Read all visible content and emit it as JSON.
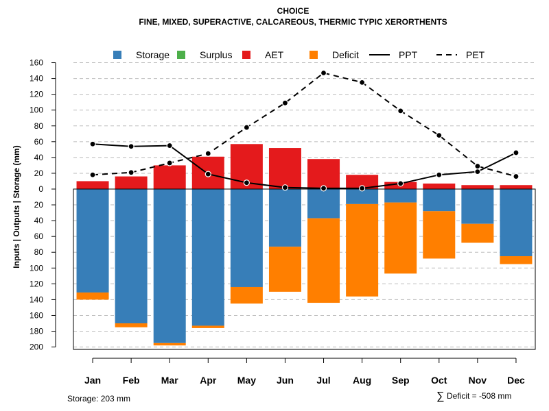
{
  "chart_data": {
    "type": "bar",
    "title": "CHOICE",
    "subtitle": "FINE, MIXED, SUPERACTIVE, CALCAREOUS, THERMIC TYPIC XERORTHENTS",
    "ylabel": "Inputs | Outputs | Storage     (mm)",
    "categories": [
      "Jan",
      "Feb",
      "Mar",
      "Apr",
      "May",
      "Jun",
      "Jul",
      "Aug",
      "Sep",
      "Oct",
      "Nov",
      "Dec"
    ],
    "ylim": [
      -203,
      160
    ],
    "yticks": [
      160,
      140,
      120,
      100,
      80,
      60,
      40,
      20,
      0,
      -20,
      -40,
      -60,
      -80,
      -100,
      -120,
      -140,
      -160,
      -180,
      -200
    ],
    "ytick_labels": [
      "160",
      "140",
      "120",
      "100",
      "80",
      "60",
      "40",
      "20",
      "0",
      "20",
      "40",
      "60",
      "80",
      "100",
      "120",
      "140",
      "160",
      "180",
      "200"
    ],
    "grid": true,
    "legend": [
      {
        "name": "Storage",
        "kind": "box",
        "color": "#377eb8"
      },
      {
        "name": "Surplus",
        "kind": "box",
        "color": "#4daf4a"
      },
      {
        "name": "AET",
        "kind": "box",
        "color": "#e41a1c"
      },
      {
        "name": "Deficit",
        "kind": "box",
        "color": "#ff7f00"
      },
      {
        "name": "PPT",
        "kind": "solid",
        "color": "#000000"
      },
      {
        "name": "PET",
        "kind": "dashed",
        "color": "#000000"
      }
    ],
    "series": [
      {
        "name": "AET",
        "color": "#e41a1c",
        "values": [
          10,
          16,
          30,
          41,
          57,
          52,
          38,
          18,
          9,
          7,
          5,
          5
        ]
      },
      {
        "name": "Surplus",
        "color": "#4daf4a",
        "values": [
          0,
          0,
          0,
          0,
          0,
          0,
          0,
          0,
          0,
          0,
          0,
          0
        ]
      },
      {
        "name": "Storage",
        "color": "#377eb8",
        "values": [
          -131,
          -170,
          -195,
          -173,
          -124,
          -73,
          -37,
          -19,
          -17,
          -28,
          -44,
          -85
        ]
      },
      {
        "name": "Deficit",
        "color": "#ff7f00",
        "values": [
          -9,
          -5,
          -3,
          -3,
          -21,
          -57,
          -107,
          -117,
          -90,
          -60,
          -24,
          -10
        ]
      },
      {
        "name": "PPT",
        "color": "#000000",
        "values": [
          57,
          54,
          55,
          19,
          8,
          2,
          1,
          1,
          7,
          18,
          22,
          46
        ]
      },
      {
        "name": "PET",
        "color": "#000000",
        "values": [
          18,
          21,
          33,
          45,
          78,
          109,
          147,
          135,
          99,
          68,
          29,
          16
        ]
      }
    ],
    "storage_bottom": -203,
    "footer_left": "Storage: 203 mm",
    "footer_right_symbol": "∑",
    "footer_right": "Deficit = -508 mm"
  }
}
